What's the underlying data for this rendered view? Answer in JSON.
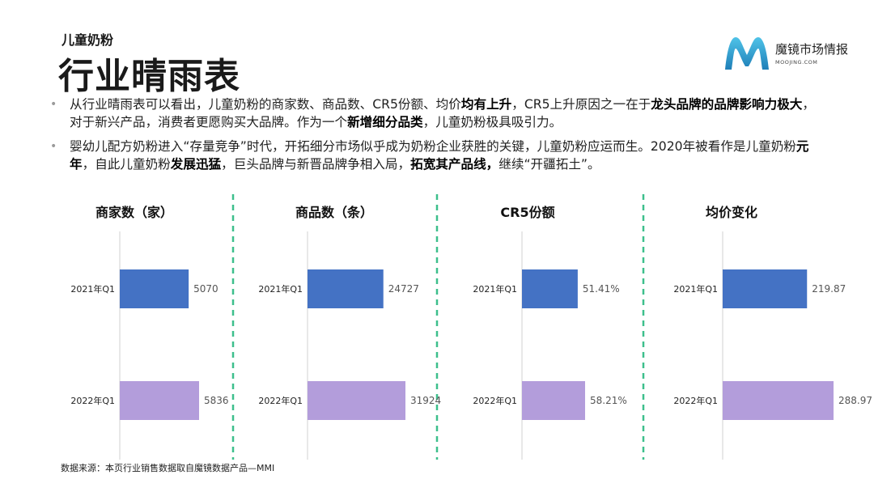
{
  "header": {
    "kicker": "儿童奶粉",
    "title": "行业晴雨表"
  },
  "logo": {
    "text": "魔镜市场情报",
    "sub": "MOOJING.COM"
  },
  "bullets": [
    {
      "segments": [
        {
          "text": "从行业晴雨表可以看出，儿童奶粉的商家数、商品数、CR5份额、均价",
          "bold": false
        },
        {
          "text": "均有上升",
          "bold": true
        },
        {
          "text": "，CR5上升原因之一在于",
          "bold": false
        },
        {
          "text": "龙头品牌的品牌影响力极大",
          "bold": true
        },
        {
          "text": "，对于新兴产品，消费者更愿购买大品牌。作为一个",
          "bold": false
        },
        {
          "text": "新增细分品类",
          "bold": true
        },
        {
          "text": "，儿童奶粉极具吸引力。",
          "bold": false
        }
      ]
    },
    {
      "segments": [
        {
          "text": "婴幼儿配方奶粉进入“存量竞争”时代，开拓细分市场似乎成为奶粉企业获胜的关键，儿童奶粉应运而生。2020年被看作是儿童奶粉",
          "bold": false
        },
        {
          "text": "元年",
          "bold": true
        },
        {
          "text": "，自此儿童奶粉",
          "bold": false
        },
        {
          "text": "发展迅猛",
          "bold": true
        },
        {
          "text": "，巨头品牌与新晋品牌争相入局，",
          "bold": false
        },
        {
          "text": "拓宽其产品线，",
          "bold": true
        },
        {
          "text": "继续“开疆拓土”。",
          "bold": false
        }
      ]
    }
  ],
  "colors": {
    "bar_2021": "#4472c4",
    "bar_2022": "#b39ddb",
    "divider": "#3dbf8c",
    "axis": "#d9d9d9"
  },
  "chart_data": [
    {
      "type": "bar",
      "orientation": "horizontal",
      "title": "商家数（家）",
      "categories": [
        "2021年Q1",
        "2022年Q1"
      ],
      "values": [
        5070,
        5836
      ],
      "labels": [
        "5070",
        "5836"
      ]
    },
    {
      "type": "bar",
      "orientation": "horizontal",
      "title": "商品数（条）",
      "categories": [
        "2021年Q1",
        "2022年Q1"
      ],
      "values": [
        24727,
        31924
      ],
      "labels": [
        "24727",
        "31924"
      ]
    },
    {
      "type": "bar",
      "orientation": "horizontal",
      "title": "CR5份额",
      "categories": [
        "2021年Q1",
        "2022年Q1"
      ],
      "values": [
        51.41,
        58.21
      ],
      "labels": [
        "51.41%",
        "58.21%"
      ]
    },
    {
      "type": "bar",
      "orientation": "horizontal",
      "title": "均价变化",
      "categories": [
        "2021年Q1",
        "2022年Q1"
      ],
      "values": [
        219.87,
        288.97
      ],
      "labels": [
        "219.87",
        "288.97"
      ]
    }
  ],
  "footer": {
    "source": "数据来源：本页行业销售数据取自魔镜数据产品—MMI"
  }
}
